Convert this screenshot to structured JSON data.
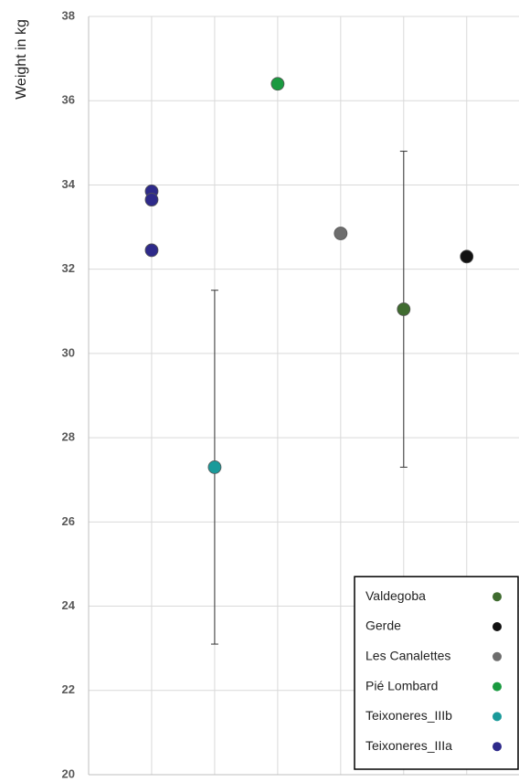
{
  "chart_data": {
    "type": "scatter",
    "y_label": "Weight in kg",
    "xlim": [
      0,
      6.83
    ],
    "xticks": [
      1,
      2,
      3,
      4,
      5,
      6
    ],
    "ylim": [
      20,
      38
    ],
    "yticks": [
      20,
      22,
      24,
      26,
      28,
      30,
      32,
      34,
      36,
      38
    ],
    "grid": true,
    "legend": "lower right",
    "series": [
      {
        "name": "Valdegoba",
        "color": "#3f6b2f",
        "x": [
          5
        ],
        "values": [
          31.05
        ],
        "errors": [
          3.75
        ]
      },
      {
        "name": "Gerde",
        "color": "#111111",
        "x": [
          6
        ],
        "values": [
          32.3
        ],
        "errors": [
          null
        ]
      },
      {
        "name": "Les Canalettes",
        "color": "#6d6d6d",
        "x": [
          4
        ],
        "values": [
          32.85
        ],
        "errors": [
          null
        ]
      },
      {
        "name": "Pié Lombard",
        "color": "#1a9a40",
        "x": [
          3
        ],
        "values": [
          36.4
        ],
        "errors": [
          null
        ]
      },
      {
        "name": "Teixoneres_IIIb",
        "color": "#1a9a9a",
        "x": [
          2
        ],
        "values": [
          27.3
        ],
        "errors": [
          4.2
        ]
      },
      {
        "name": "Teixoneres_IIIa",
        "color": "#2e2a8a",
        "x": [
          1,
          1,
          1
        ],
        "values": [
          33.85,
          33.65,
          32.45
        ],
        "errors": [
          null,
          null,
          null
        ]
      }
    ]
  }
}
